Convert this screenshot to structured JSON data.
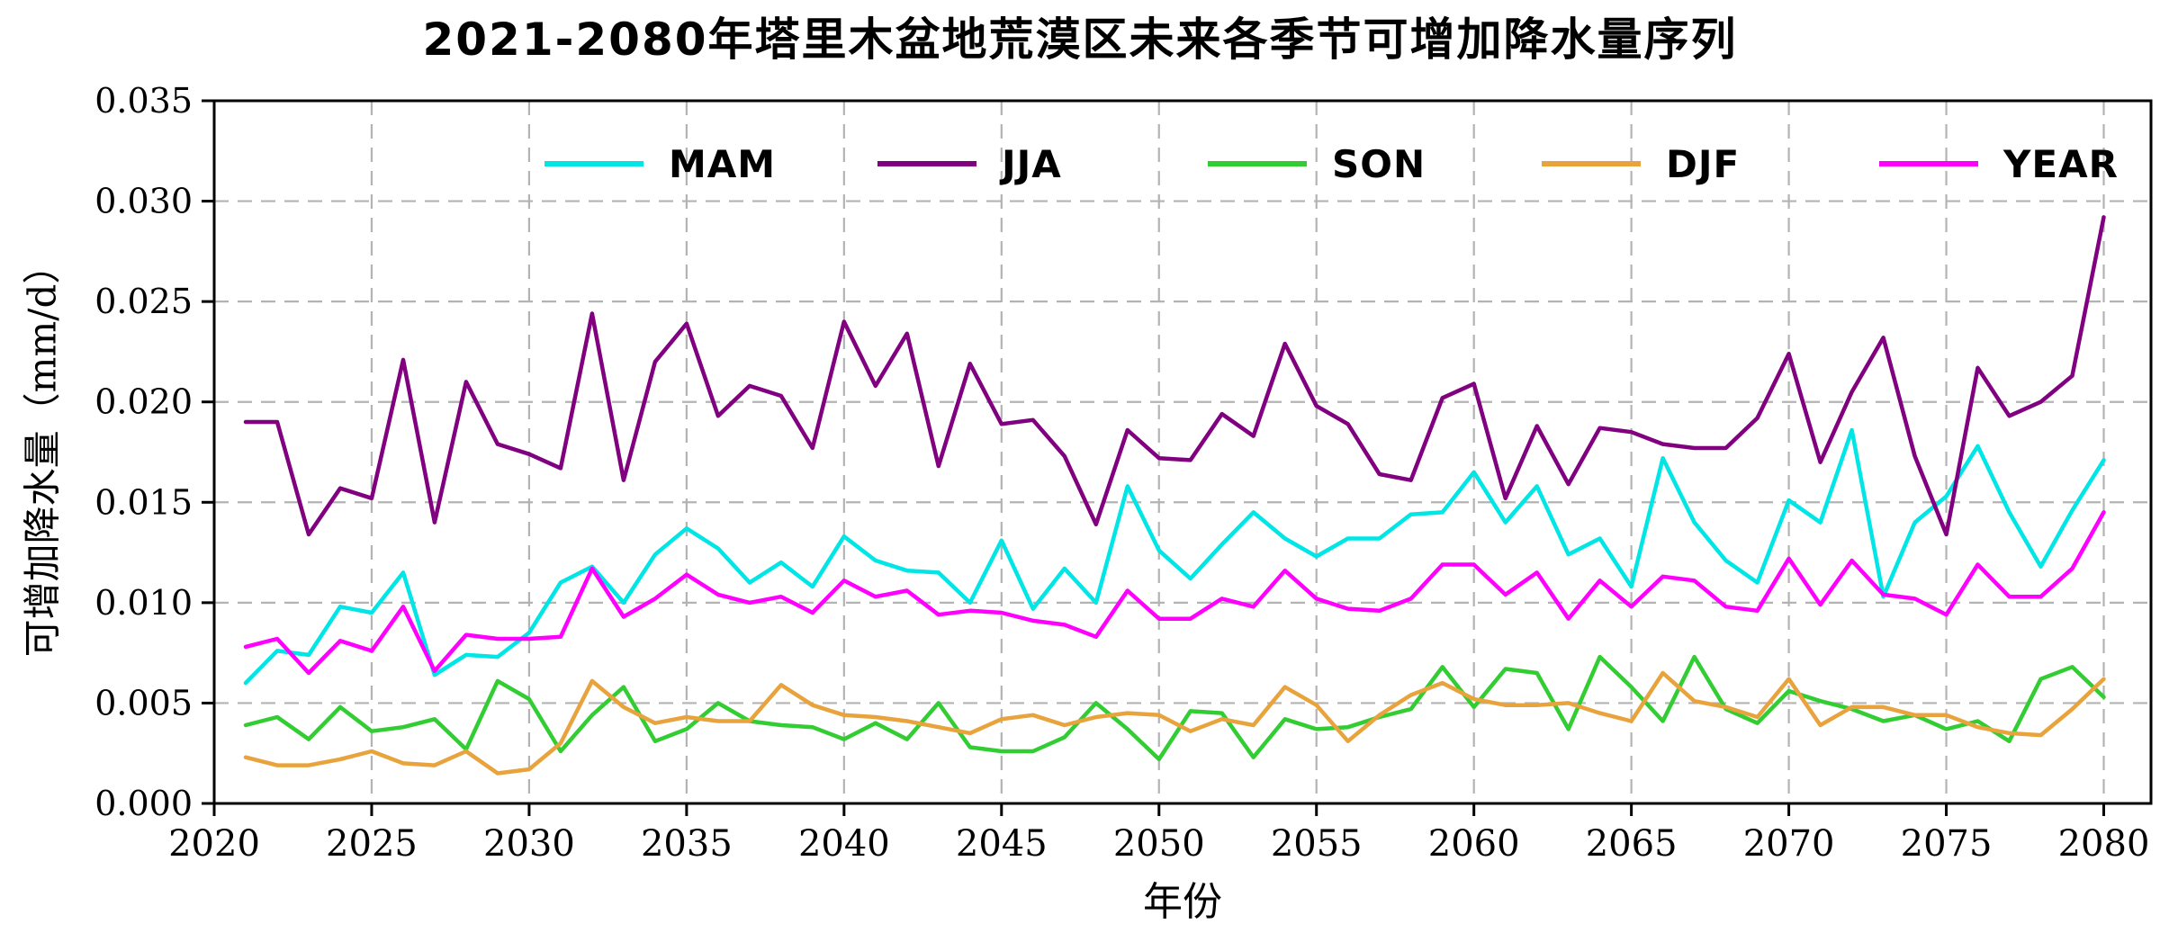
{
  "chart_data": {
    "type": "line",
    "title": "2021-2080年塔里木盆地荒漠区未来各季节可增加降水量序列",
    "xlabel": "年份",
    "ylabel": "可增加降水量（mm/d）",
    "xlim": [
      2020,
      2081.5
    ],
    "ylim": [
      0,
      0.035
    ],
    "xticks": [
      2020,
      2025,
      2030,
      2035,
      2040,
      2045,
      2050,
      2055,
      2060,
      2065,
      2070,
      2075,
      2080
    ],
    "yticks": [
      "0.000",
      "0.005",
      "0.010",
      "0.015",
      "0.020",
      "0.025",
      "0.030",
      "0.035"
    ],
    "grid": {
      "on": true,
      "color": "#b3b3b3",
      "style": "dashed"
    },
    "legend_position": "upper center inside, horizontal row",
    "x": [
      2021,
      2022,
      2023,
      2024,
      2025,
      2026,
      2027,
      2028,
      2029,
      2030,
      2031,
      2032,
      2033,
      2034,
      2035,
      2036,
      2037,
      2038,
      2039,
      2040,
      2041,
      2042,
      2043,
      2044,
      2045,
      2046,
      2047,
      2048,
      2049,
      2050,
      2051,
      2052,
      2053,
      2054,
      2055,
      2056,
      2057,
      2058,
      2059,
      2060,
      2061,
      2062,
      2063,
      2064,
      2065,
      2066,
      2067,
      2068,
      2069,
      2070,
      2071,
      2072,
      2073,
      2074,
      2075,
      2076,
      2077,
      2078,
      2079,
      2080
    ],
    "series": [
      {
        "name": "MAM",
        "color": "#00e5e5",
        "values": [
          0.006,
          0.0076,
          0.0074,
          0.0098,
          0.0095,
          0.0115,
          0.0064,
          0.0074,
          0.0073,
          0.0085,
          0.011,
          0.0118,
          0.01,
          0.0124,
          0.0137,
          0.0127,
          0.011,
          0.012,
          0.0108,
          0.0133,
          0.0121,
          0.0116,
          0.0115,
          0.01,
          0.0131,
          0.0097,
          0.0117,
          0.01,
          0.0158,
          0.0126,
          0.0112,
          0.0129,
          0.0145,
          0.0132,
          0.0123,
          0.0132,
          0.0132,
          0.0144,
          0.0145,
          0.0165,
          0.014,
          0.0158,
          0.0124,
          0.0132,
          0.0108,
          0.0172,
          0.014,
          0.0121,
          0.011,
          0.0151,
          0.014,
          0.0186,
          0.0103,
          0.014,
          0.0153,
          0.0178,
          0.0145,
          0.0118,
          0.0146,
          0.0171
        ]
      },
      {
        "name": "JJA",
        "color": "#800080",
        "values": [
          0.019,
          0.019,
          0.0134,
          0.0157,
          0.0152,
          0.0221,
          0.014,
          0.021,
          0.0179,
          0.0174,
          0.0167,
          0.0244,
          0.0161,
          0.022,
          0.0239,
          0.0193,
          0.0208,
          0.0203,
          0.0177,
          0.024,
          0.0208,
          0.0234,
          0.0168,
          0.0219,
          0.0189,
          0.0191,
          0.0173,
          0.0139,
          0.0186,
          0.0172,
          0.0171,
          0.0194,
          0.0183,
          0.0229,
          0.0198,
          0.0189,
          0.0164,
          0.0161,
          0.0202,
          0.0209,
          0.0152,
          0.0188,
          0.0159,
          0.0187,
          0.0185,
          0.0179,
          0.0177,
          0.0177,
          0.0192,
          0.0224,
          0.017,
          0.0205,
          0.0232,
          0.0173,
          0.0134,
          0.0217,
          0.0193,
          0.02,
          0.0213,
          0.0292
        ]
      },
      {
        "name": "SON",
        "color": "#32cd32",
        "values": [
          0.0039,
          0.0043,
          0.0032,
          0.0048,
          0.0036,
          0.0038,
          0.0042,
          0.0027,
          0.0061,
          0.0052,
          0.0026,
          0.0044,
          0.0058,
          0.0031,
          0.0037,
          0.005,
          0.0041,
          0.0039,
          0.0038,
          0.0032,
          0.004,
          0.0032,
          0.005,
          0.0028,
          0.0026,
          0.0026,
          0.0033,
          0.005,
          0.0037,
          0.0022,
          0.0046,
          0.0045,
          0.0023,
          0.0042,
          0.0037,
          0.0038,
          0.0043,
          0.0047,
          0.0068,
          0.0048,
          0.0067,
          0.0065,
          0.0037,
          0.0073,
          0.0058,
          0.0041,
          0.0073,
          0.0047,
          0.004,
          0.0056,
          0.0051,
          0.0047,
          0.0041,
          0.0044,
          0.0037,
          0.0041,
          0.0031,
          0.0062,
          0.0068,
          0.0053
        ]
      },
      {
        "name": "DJF",
        "color": "#e8a33d",
        "values": [
          0.0023,
          0.0019,
          0.0019,
          0.0022,
          0.0026,
          0.002,
          0.0019,
          0.0026,
          0.0015,
          0.0017,
          0.003,
          0.0061,
          0.0048,
          0.004,
          0.0043,
          0.0041,
          0.0041,
          0.0059,
          0.0049,
          0.0044,
          0.0043,
          0.0041,
          0.0038,
          0.0035,
          0.0042,
          0.0044,
          0.0039,
          0.0043,
          0.0045,
          0.0044,
          0.0036,
          0.0042,
          0.0039,
          0.0058,
          0.0049,
          0.0031,
          0.0044,
          0.0054,
          0.006,
          0.0052,
          0.0049,
          0.0049,
          0.005,
          0.0045,
          0.0041,
          0.0065,
          0.0051,
          0.0048,
          0.0043,
          0.0062,
          0.0039,
          0.0048,
          0.0048,
          0.0044,
          0.0044,
          0.0038,
          0.0035,
          0.0034,
          0.0047,
          0.0062
        ]
      },
      {
        "name": "YEAR",
        "color": "#ff00ff",
        "values": [
          0.0078,
          0.0082,
          0.0065,
          0.0081,
          0.0076,
          0.0098,
          0.0066,
          0.0084,
          0.0082,
          0.0082,
          0.0083,
          0.0117,
          0.0093,
          0.0102,
          0.0114,
          0.0104,
          0.01,
          0.0103,
          0.0095,
          0.0111,
          0.0103,
          0.0106,
          0.0094,
          0.0096,
          0.0095,
          0.0091,
          0.0089,
          0.0083,
          0.0106,
          0.0092,
          0.0092,
          0.0102,
          0.0098,
          0.0116,
          0.0102,
          0.0097,
          0.0096,
          0.0102,
          0.0119,
          0.0119,
          0.0104,
          0.0115,
          0.0092,
          0.0111,
          0.0098,
          0.0113,
          0.0111,
          0.0098,
          0.0096,
          0.0122,
          0.0099,
          0.0121,
          0.0104,
          0.0102,
          0.0094,
          0.0119,
          0.0103,
          0.0103,
          0.0117,
          0.0145
        ]
      }
    ]
  }
}
